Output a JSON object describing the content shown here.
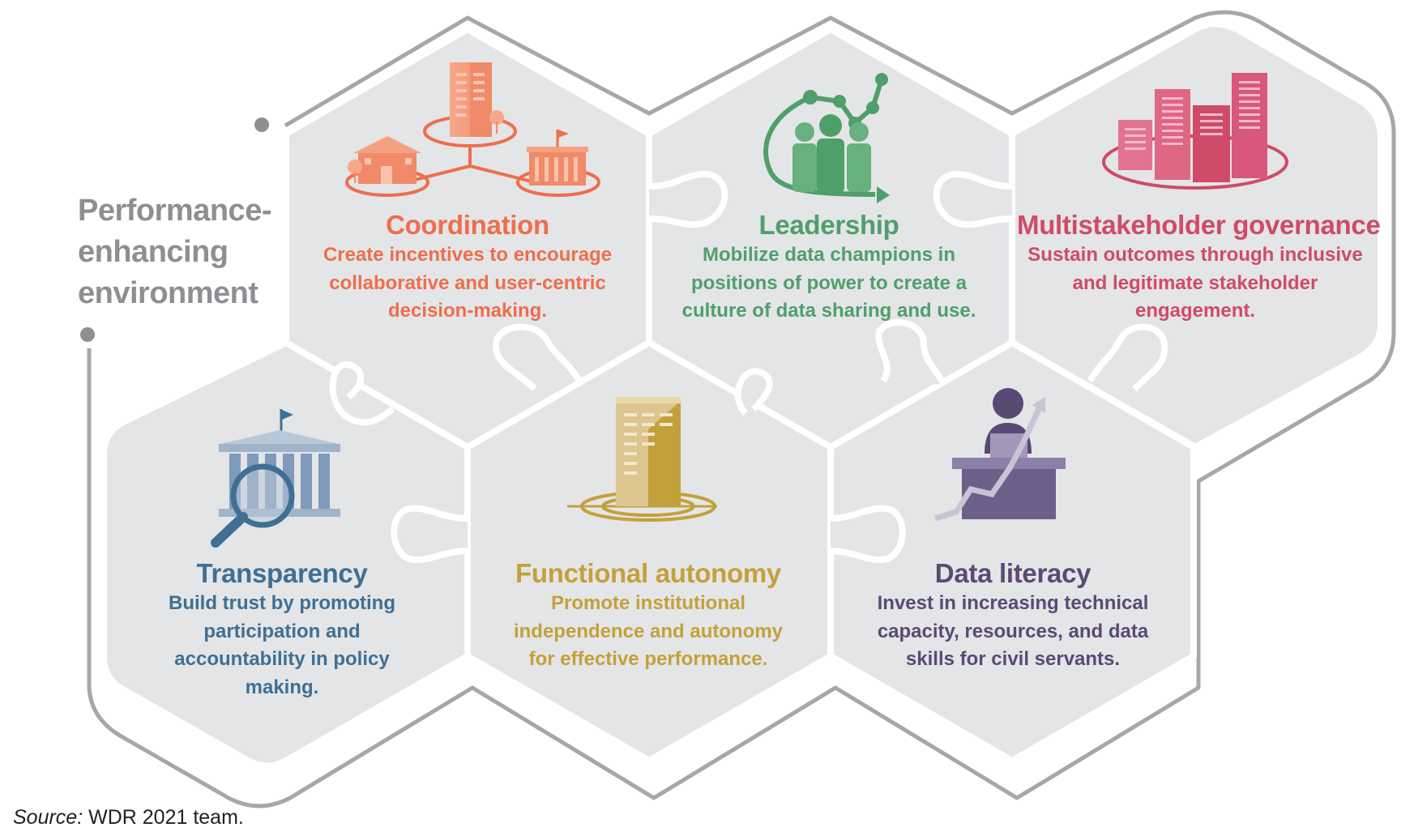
{
  "side_label": {
    "lines": [
      "Performance-",
      "enhancing",
      "environment"
    ]
  },
  "colors": {
    "hex_fill": "#e4e5e7",
    "outline": "#a6a7aa",
    "seams": "#ffffff",
    "side_label": "#8e8f92",
    "coordination": "#ee6e4c",
    "leadership": "#4f9f6b",
    "multistakeholder": "#cf4b68",
    "transparency": "#3f6f93",
    "functional_autonomy": "#c3a13a",
    "data_literacy": "#5a4a73"
  },
  "pillars": [
    {
      "id": "coordination",
      "icon": "connected-buildings-icon",
      "title": "Coordination",
      "description_lines": [
        "Create incentives to encourage",
        "collaborative and user-centric",
        "decision-making."
      ]
    },
    {
      "id": "leadership",
      "icon": "rising-people-chart-icon",
      "title": "Leadership",
      "description_lines": [
        "Mobilize data champions in",
        "positions of power to create a",
        "culture of data sharing and use."
      ]
    },
    {
      "id": "multistakeholder",
      "icon": "city-skyline-icon",
      "title": "Multistakeholder governance",
      "description_lines": [
        "Sustain outcomes through inclusive",
        "and legitimate stakeholder",
        "engagement."
      ]
    },
    {
      "id": "transparency",
      "icon": "magnified-institution-icon",
      "title": "Transparency",
      "description_lines": [
        "Build trust by promoting",
        "participation and",
        "accountability in policy",
        "making."
      ]
    },
    {
      "id": "functional_autonomy",
      "icon": "anchored-tower-icon",
      "title": "Functional autonomy",
      "description_lines": [
        "Promote institutional",
        "independence and autonomy",
        "for effective performance."
      ]
    },
    {
      "id": "data_literacy",
      "icon": "person-laptop-growth-icon",
      "title": "Data literacy",
      "description_lines": [
        "Invest in increasing technical",
        "capacity, resources, and data",
        "skills for civil servants."
      ]
    }
  ],
  "source": {
    "label": "Source:",
    "text": " WDR 2021 team."
  }
}
